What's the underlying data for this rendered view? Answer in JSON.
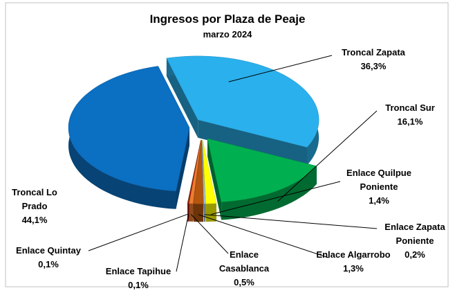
{
  "chart_data": {
    "type": "pie3d",
    "title": "Ingresos por Plaza de Peaje",
    "subtitle": "marzo 2024",
    "categories": [
      "Troncal Zapata",
      "Troncal Sur",
      "Enlace Quilpue Poniente",
      "Enlace Zapata Poniente",
      "Enlace Algarrobo",
      "Enlace Casablanca",
      "Enlace Tapihue",
      "Enlace Quintay",
      "Troncal Lo Prado"
    ],
    "values": [
      36.3,
      16.1,
      1.4,
      0.2,
      1.3,
      0.5,
      0.1,
      0.1,
      44.1
    ],
    "value_labels": [
      "36,3%",
      "16,1%",
      "1,4%",
      "0,2%",
      "1,3%",
      "0,5%",
      "0,1%",
      "0,1%",
      "44,1%"
    ],
    "colors": [
      "#2ab0ec",
      "#00b050",
      "#ffff00",
      "#9dc3e6",
      "#b5560f",
      "#ed7d31",
      "#c00000",
      "#6b5a2a",
      "#0b6fc2"
    ]
  }
}
